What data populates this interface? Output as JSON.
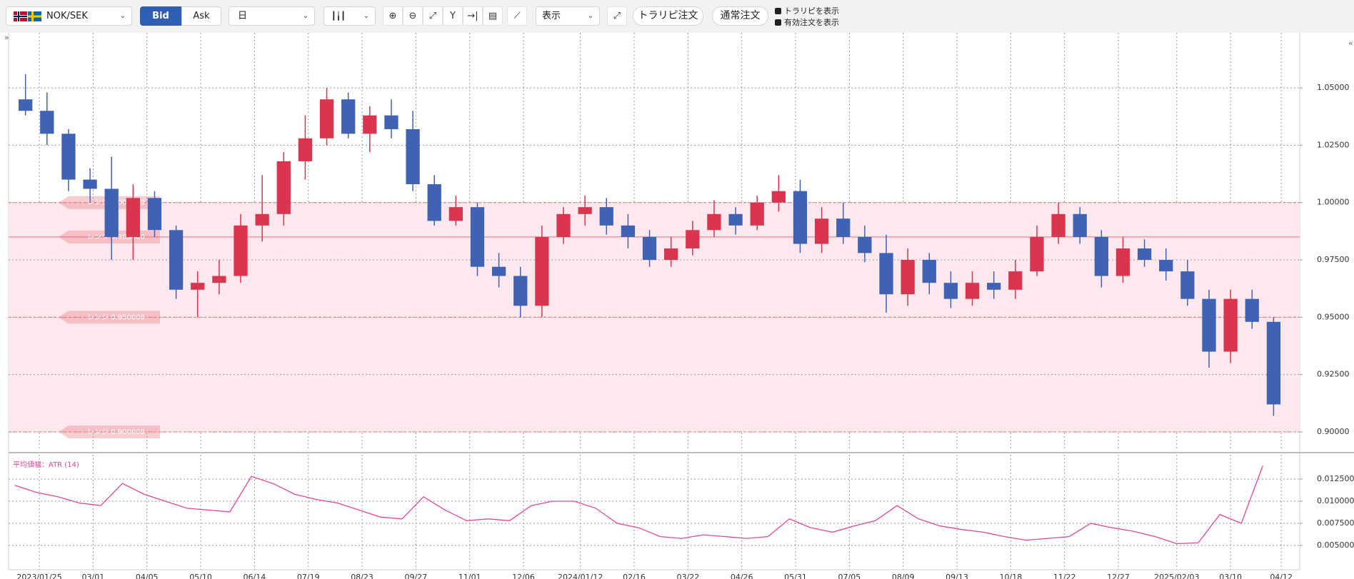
{
  "toolbar": {
    "pair": "NOK/SEK",
    "bid": "Bid",
    "ask": "Ask",
    "period": "日",
    "display": "表示",
    "buttons": [
      "トラリピ注文",
      "通常注文"
    ],
    "checkboxes": [
      "トラリピを表示",
      "有効注文を表示"
    ]
  },
  "chart_data": [
    {
      "type": "candlestick",
      "x": [
        "2023/01/09",
        "2023/01/23",
        "2023/02/06",
        "2023/02/20",
        "2023/03/06",
        "2023/03/20",
        "2023/04/03",
        "2023/04/17",
        "2023/05/01",
        "2023/05/15",
        "2023/05/29",
        "2023/06/12",
        "2023/06/26",
        "2023/07/10",
        "2023/07/24",
        "2023/08/07",
        "2023/08/21",
        "2023/09/04",
        "2023/09/18",
        "2023/10/02",
        "2023/10/16",
        "2023/10/30",
        "2023/11/13",
        "2023/11/27",
        "2023/12/11",
        "2023/12/25",
        "2024/01/08",
        "2024/01/22",
        "2024/02/05",
        "2024/02/19",
        "2024/03/04",
        "2024/03/18",
        "2024/04/01",
        "2024/04/15",
        "2024/04/29",
        "2024/05/13",
        "2024/05/27",
        "2024/06/10",
        "2024/06/24",
        "2024/07/08",
        "2024/07/22",
        "2024/08/05",
        "2024/08/19",
        "2024/09/02",
        "2024/09/16",
        "2024/09/30",
        "2024/10/14",
        "2024/10/28",
        "2024/11/11",
        "2024/11/25",
        "2024/12/09",
        "2024/12/23",
        "2025/01/06",
        "2025/01/20",
        "2025/02/03",
        "2025/02/17",
        "2025/03/03",
        "2025/03/17",
        "2025/03/31"
      ],
      "open": [
        1.045,
        1.04,
        1.03,
        1.01,
        1.006,
        0.985,
        1.002,
        0.988,
        0.962,
        0.965,
        0.968,
        0.99,
        0.995,
        1.018,
        1.028,
        1.045,
        1.03,
        1.038,
        1.032,
        1.008,
        0.992,
        0.998,
        0.972,
        0.968,
        0.955,
        0.985,
        0.995,
        0.998,
        0.99,
        0.985,
        0.975,
        0.98,
        0.988,
        0.995,
        0.99,
        1.0,
        1.005,
        0.982,
        0.993,
        0.985,
        0.978,
        0.96,
        0.975,
        0.965,
        0.958,
        0.965,
        0.962,
        0.97,
        0.985,
        0.995,
        0.985,
        0.968,
        0.98,
        0.975,
        0.97,
        0.958,
        0.935,
        0.958,
        0.948
      ],
      "high": [
        1.056,
        1.048,
        1.032,
        1.015,
        1.02,
        1.008,
        1.005,
        0.99,
        0.97,
        0.975,
        0.995,
        1.012,
        1.022,
        1.038,
        1.05,
        1.048,
        1.042,
        1.045,
        1.04,
        1.012,
        1.003,
        1.0,
        0.978,
        0.972,
        0.99,
        0.998,
        1.003,
        1.002,
        0.995,
        0.988,
        0.985,
        0.992,
        1.001,
        0.998,
        1.003,
        1.012,
        1.01,
        0.998,
        1.0,
        0.99,
        0.986,
        0.98,
        0.978,
        0.97,
        0.97,
        0.97,
        0.975,
        0.99,
        1.0,
        0.998,
        0.988,
        0.985,
        0.984,
        0.98,
        0.975,
        0.962,
        0.962,
        0.962,
        0.95
      ],
      "low": [
        1.038,
        1.025,
        1.005,
        1.0,
        0.975,
        0.975,
        0.985,
        0.958,
        0.95,
        0.96,
        0.965,
        0.983,
        0.99,
        1.01,
        1.025,
        1.028,
        1.022,
        1.028,
        1.005,
        0.99,
        0.99,
        0.968,
        0.963,
        0.95,
        0.95,
        0.982,
        0.99,
        0.986,
        0.98,
        0.972,
        0.972,
        0.977,
        0.985,
        0.986,
        0.988,
        0.996,
        0.978,
        0.978,
        0.982,
        0.974,
        0.952,
        0.955,
        0.96,
        0.954,
        0.955,
        0.958,
        0.958,
        0.968,
        0.982,
        0.982,
        0.963,
        0.965,
        0.972,
        0.966,
        0.955,
        0.928,
        0.93,
        0.945,
        0.907
      ],
      "close": [
        1.04,
        1.03,
        1.01,
        1.006,
        0.985,
        1.002,
        0.988,
        0.962,
        0.965,
        0.968,
        0.99,
        0.995,
        1.018,
        1.028,
        1.045,
        1.03,
        1.038,
        1.032,
        1.008,
        0.992,
        0.998,
        0.972,
        0.968,
        0.955,
        0.985,
        0.995,
        0.998,
        0.99,
        0.985,
        0.975,
        0.98,
        0.988,
        0.995,
        0.99,
        1.0,
        1.005,
        0.982,
        0.993,
        0.985,
        0.978,
        0.96,
        0.975,
        0.965,
        0.958,
        0.965,
        0.962,
        0.97,
        0.985,
        0.995,
        0.985,
        0.968,
        0.98,
        0.975,
        0.97,
        0.958,
        0.935,
        0.958,
        0.948,
        0.912
      ],
      "up_color": "#d9354f",
      "down_color": "#3f62b3",
      "xlim": [
        "2023/01/05",
        "2025/04/24"
      ],
      "xticks": [
        "2023/01/25",
        {
          "value": "2023/03/01",
          "label": "03/01"
        },
        {
          "value": "2023/04/05",
          "label": "04/05"
        },
        {
          "value": "2023/05/10",
          "label": "05/10"
        },
        {
          "value": "2023/06/14",
          "label": "06/14"
        },
        {
          "value": "2023/07/19",
          "label": "07/19"
        },
        {
          "value": "2023/08/23",
          "label": "08/23"
        },
        {
          "value": "2023/09/27",
          "label": "09/27"
        },
        {
          "value": "2023/11/01",
          "label": "11/01"
        },
        {
          "value": "2023/12/06",
          "label": "12/06"
        },
        "2024/01/12",
        {
          "value": "2024/02/16",
          "label": "02/16"
        },
        {
          "value": "2024/03/22",
          "label": "03/22"
        },
        {
          "value": "2024/04/26",
          "label": "04/26"
        },
        {
          "value": "2024/05/31",
          "label": "05/31"
        },
        {
          "value": "2024/07/05",
          "label": "07/05"
        },
        {
          "value": "2024/08/09",
          "label": "08/09"
        },
        {
          "value": "2024/09/13",
          "label": "09/13"
        },
        {
          "value": "2024/10/18",
          "label": "10/18"
        },
        {
          "value": "2024/11/22",
          "label": "11/22"
        },
        {
          "value": "2024/12/27",
          "label": "12/27"
        },
        "2025/02/03",
        {
          "value": "2025/03/10",
          "label": "03/10"
        },
        {
          "value": "2025/04/12",
          "label": "04/12"
        }
      ],
      "ylim": [
        0.8919,
        1.074
      ],
      "yticks": [
        {
          "value": 0.9,
          "label": "0.90000"
        },
        {
          "value": 0.925,
          "label": "0.92500"
        },
        {
          "value": 0.95,
          "label": "0.95000"
        },
        {
          "value": 0.975,
          "label": "0.97500"
        },
        {
          "value": 1.0,
          "label": "1.00000"
        },
        {
          "value": 1.025,
          "label": "1.02500"
        },
        {
          "value": 1.05,
          "label": "1.05000"
        }
      ],
      "grid": true,
      "ranges": [
        {
          "value": 1.0,
          "label": "レンジ 1.000000",
          "style": "dashed"
        },
        {
          "value": 0.985,
          "label": "レンジ 0.985000",
          "style": "solid"
        },
        {
          "value": 0.95,
          "label": "レンジ 0.950000",
          "style": "dashed"
        },
        {
          "value": 0.9,
          "label": "レンジ 0.900000",
          "style": "dashed"
        }
      ],
      "range_color": "#e8707f",
      "band_color": "#fde9ed"
    },
    {
      "type": "line",
      "title": "平均値幅：ATR (14)",
      "x": [
        "2023/01/09",
        "2023/01/23",
        "2023/02/06",
        "2023/02/20",
        "2023/03/06",
        "2023/03/20",
        "2023/04/03",
        "2023/04/17",
        "2023/05/01",
        "2023/05/15",
        "2023/05/29",
        "2023/06/12",
        "2023/06/26",
        "2023/07/10",
        "2023/07/24",
        "2023/08/07",
        "2023/08/21",
        "2023/09/04",
        "2023/09/18",
        "2023/10/02",
        "2023/10/16",
        "2023/10/30",
        "2023/11/13",
        "2023/11/27",
        "2023/12/11",
        "2023/12/25",
        "2024/01/08",
        "2024/01/22",
        "2024/02/05",
        "2024/02/19",
        "2024/03/04",
        "2024/03/18",
        "2024/04/01",
        "2024/04/15",
        "2024/04/29",
        "2024/05/13",
        "2024/05/27",
        "2024/06/10",
        "2024/06/24",
        "2024/07/08",
        "2024/07/22",
        "2024/08/05",
        "2024/08/19",
        "2024/09/02",
        "2024/09/16",
        "2024/09/30",
        "2024/10/14",
        "2024/10/28",
        "2024/11/11",
        "2024/11/25",
        "2024/12/09",
        "2024/12/23",
        "2025/01/06",
        "2025/01/20",
        "2025/02/03",
        "2025/02/17",
        "2025/03/03",
        "2025/03/17",
        "2025/03/31"
      ],
      "series": [
        {
          "color": "#e2489a",
          "values": [
            0.0118,
            0.011,
            0.0105,
            0.0098,
            0.0095,
            0.012,
            0.0108,
            0.01,
            0.0092,
            0.009,
            0.0088,
            0.0128,
            0.012,
            0.0108,
            0.0102,
            0.0098,
            0.009,
            0.0082,
            0.008,
            0.0105,
            0.009,
            0.0078,
            0.008,
            0.0078,
            0.0095,
            0.01,
            0.01,
            0.0092,
            0.0075,
            0.007,
            0.006,
            0.0058,
            0.0062,
            0.006,
            0.0058,
            0.006,
            0.008,
            0.007,
            0.0065,
            0.0072,
            0.0078,
            0.0095,
            0.008,
            0.0072,
            0.0068,
            0.0065,
            0.006,
            0.0056,
            0.0058,
            0.006,
            0.0075,
            0.007,
            0.0066,
            0.006,
            0.0052,
            0.0053,
            0.0085,
            0.0075,
            0.014
          ]
        }
      ],
      "xlim": [
        "2023/01/05",
        "2025/04/24"
      ],
      "ylim": [
        0.00226,
        0.01524
      ],
      "yticks": [
        {
          "value": 0.005,
          "label": "0.0050000"
        },
        {
          "value": 0.0075,
          "label": "0.0075000"
        },
        {
          "value": 0.01,
          "label": "0.0100000"
        },
        {
          "value": 0.0125,
          "label": "0.0125000"
        }
      ],
      "grid": true
    }
  ]
}
